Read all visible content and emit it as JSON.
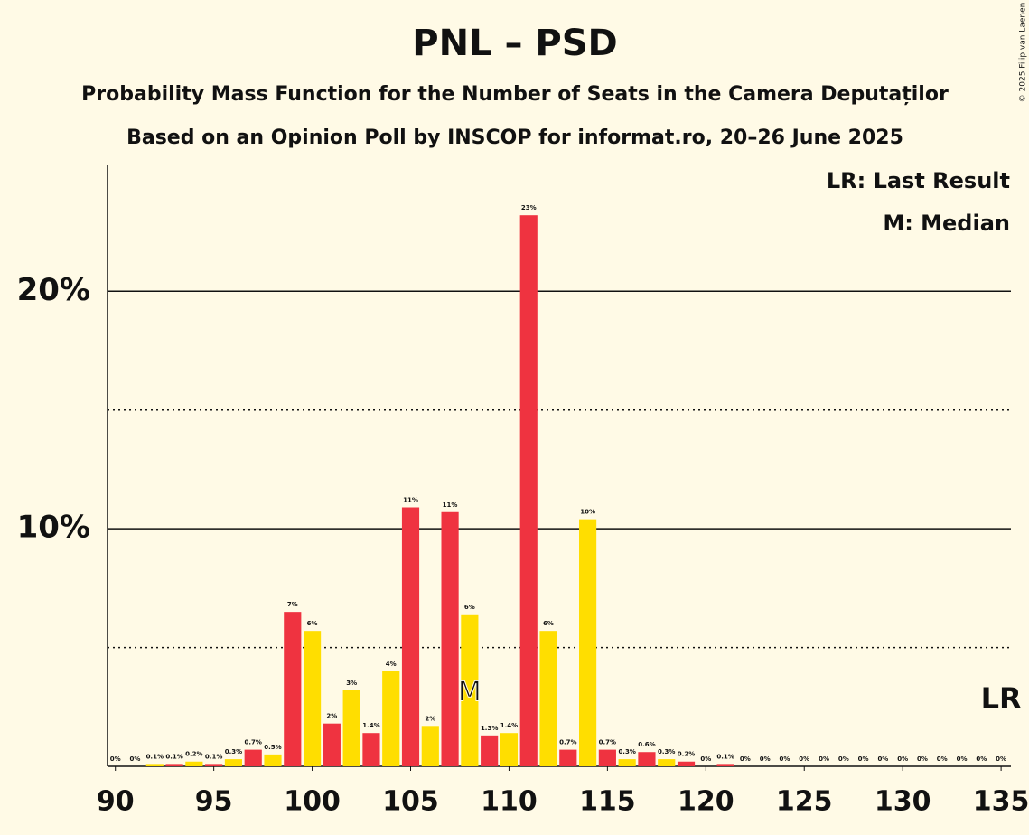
{
  "chart_data": {
    "type": "bar",
    "title": "PNL – PSD",
    "subtitle": "Probability Mass Function for the Number of Seats in the Camera Deputaților",
    "subtitle2": "Based on an Opinion Poll by INSCOP for informat.ro, 20–26 June 2025",
    "copyright": "© 2025 Filip van Laenen",
    "legend": [
      "LR: Last Result",
      "M: Median"
    ],
    "legend_corner": "top-right",
    "x": [
      90,
      91,
      92,
      93,
      94,
      95,
      96,
      97,
      98,
      99,
      100,
      101,
      102,
      103,
      104,
      105,
      106,
      107,
      108,
      109,
      110,
      111,
      112,
      113,
      114,
      115,
      116,
      117,
      118,
      119,
      120,
      121,
      122,
      123,
      124,
      125,
      126,
      127,
      128,
      129,
      130,
      131,
      132,
      133,
      134,
      135
    ],
    "values": [
      0,
      0,
      0.1,
      0.1,
      0.2,
      0.1,
      0.3,
      0.7,
      0.5,
      6.5,
      5.7,
      1.8,
      3.2,
      1.4,
      4.0,
      10.9,
      1.7,
      10.7,
      6.4,
      1.3,
      1.4,
      23.2,
      5.7,
      0.7,
      10.4,
      0.7,
      0.3,
      0.6,
      0.3,
      0.2,
      0,
      0.1,
      0,
      0,
      0,
      0,
      0,
      0,
      0,
      0,
      0,
      0,
      0,
      0,
      0,
      0
    ],
    "value_labels": [
      "0%",
      "0%",
      "0.1%",
      "0.1%",
      "0.2%",
      "0.1%",
      "0.3%",
      "0.7%",
      "0.5%",
      "7%",
      "6%",
      "2%",
      "3%",
      "1.4%",
      "4%",
      "11%",
      "2%",
      "11%",
      "6%",
      "1.3%",
      "1.4%",
      "23%",
      "6%",
      "0.7%",
      "10%",
      "0.7%",
      "0.3%",
      "0.6%",
      "0.3%",
      "0.2%",
      "0%",
      "0.1%",
      "0%",
      "0%",
      "0%",
      "0%",
      "0%",
      "0%",
      "0%",
      "0%",
      "0%",
      "0%",
      "0%",
      "0%",
      "0%",
      "0%"
    ],
    "colors": [
      "#ffde00",
      "#ef3340",
      "#ffde00",
      "#ef3340",
      "#ffde00",
      "#ef3340",
      "#ffde00",
      "#ef3340",
      "#ffde00",
      "#ef3340",
      "#ffde00",
      "#ef3340",
      "#ffde00",
      "#ef3340",
      "#ffde00",
      "#ef3340",
      "#ffde00",
      "#ef3340",
      "#ffde00",
      "#ef3340",
      "#ffde00",
      "#ef3340",
      "#ffde00",
      "#ef3340",
      "#ffde00",
      "#ef3340",
      "#ffde00",
      "#ef3340",
      "#ffde00",
      "#ef3340",
      "#ffde00",
      "#ef3340",
      "#ffde00",
      "#ef3340",
      "#ffde00",
      "#ef3340",
      "#ffde00",
      "#ef3340",
      "#ffde00",
      "#ef3340",
      "#ffde00",
      "#ef3340",
      "#ffde00",
      "#ef3340",
      "#ffde00",
      "#ef3340"
    ],
    "xlim": [
      89.6,
      135.5
    ],
    "xticks": [
      90,
      95,
      100,
      105,
      110,
      115,
      120,
      125,
      130,
      135
    ],
    "ylim": [
      0,
      25.3
    ],
    "yticks": [
      {
        "value": 10,
        "label": "10%"
      },
      {
        "value": 20,
        "label": "20%"
      }
    ],
    "minor_yticks": [
      5,
      15
    ],
    "grid": true,
    "annotations": [
      {
        "x": 108,
        "text": "M"
      },
      {
        "x": 135,
        "text": "LR"
      }
    ]
  }
}
